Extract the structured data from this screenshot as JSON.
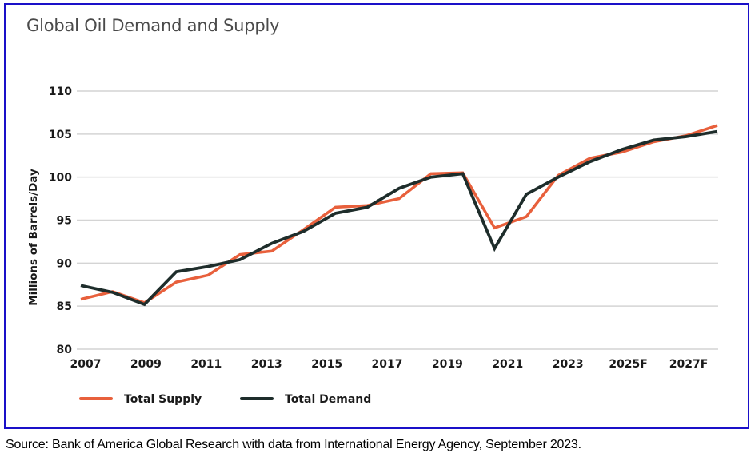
{
  "chart_data": {
    "type": "line",
    "title": "Global Oil Demand and Supply",
    "xlabel": "",
    "ylabel": "Millions of Barrels/Day",
    "ylim": [
      80,
      110
    ],
    "yticks": [
      80,
      85,
      90,
      95,
      100,
      105,
      110
    ],
    "grid": true,
    "x": [
      2007,
      2008,
      2009,
      2010,
      2011,
      2012,
      2013,
      2014,
      2015,
      2016,
      2017,
      2018,
      2019,
      2020,
      2021,
      2022,
      2023,
      2024,
      2025,
      2026,
      2027
    ],
    "xtick_labels": [
      "2007",
      "2009",
      "2011",
      "2013",
      "2015",
      "2017",
      "2019",
      "2021",
      "2023",
      "2025F",
      "2027F"
    ],
    "series": [
      {
        "name": "Total Supply",
        "color": "#e8603c",
        "values": [
          85.8,
          86.7,
          85.4,
          87.8,
          88.6,
          91.0,
          91.4,
          93.9,
          96.5,
          96.7,
          97.5,
          100.4,
          100.5,
          94.1,
          95.4,
          100.2,
          102.2,
          102.9,
          104.1,
          104.8,
          106.0
        ]
      },
      {
        "name": "Total Demand",
        "color": "#1e2d2b",
        "values": [
          87.4,
          86.6,
          85.2,
          89.0,
          89.6,
          90.4,
          92.3,
          93.7,
          95.8,
          96.5,
          98.7,
          100.0,
          100.4,
          91.7,
          98.0,
          100.0,
          101.8,
          103.2,
          104.3,
          104.7,
          105.3
        ]
      }
    ],
    "legend": {
      "placement": "bottom-left"
    }
  },
  "source_note": "Source: Bank of America Global Research with data from International Energy Agency, September 2023."
}
